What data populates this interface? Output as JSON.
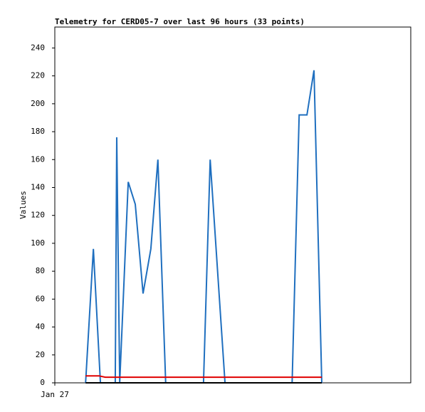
{
  "chart_data": {
    "type": "line",
    "title": "Telemetry for CERD05-7 over last 96 hours (33 points)",
    "y_label": "Values",
    "xlim": [
      0,
      96
    ],
    "xticks": [
      {
        "value": 0,
        "label": "Jan 27"
      }
    ],
    "ylim": [
      0,
      255
    ],
    "yticks": [
      0,
      20,
      40,
      60,
      80,
      100,
      120,
      140,
      160,
      180,
      200,
      220,
      240
    ],
    "series": [
      {
        "color": "#1f6fbf",
        "x": [
          8.3,
          10.4,
          12.3,
          16.3,
          16.7,
          17.5,
          19.8,
          21.7,
          23.8,
          25.9,
          27.8,
          29.9,
          40.1,
          41.9,
          45.9,
          64.0,
          65.9,
          68.0,
          69.9,
          72.0
        ],
        "values": [
          0,
          96,
          0,
          0,
          176,
          0,
          144,
          128,
          64,
          96,
          160,
          0,
          0,
          160,
          0,
          0,
          192,
          192,
          224,
          0
        ]
      },
      {
        "color": "#e00000",
        "x": [
          8.3,
          11.9,
          13.6,
          72.0
        ],
        "values": [
          5,
          5,
          4,
          4
        ]
      },
      {
        "color": "#000000",
        "x": [
          8.3,
          72.0
        ],
        "values": [
          0,
          0
        ]
      }
    ]
  }
}
